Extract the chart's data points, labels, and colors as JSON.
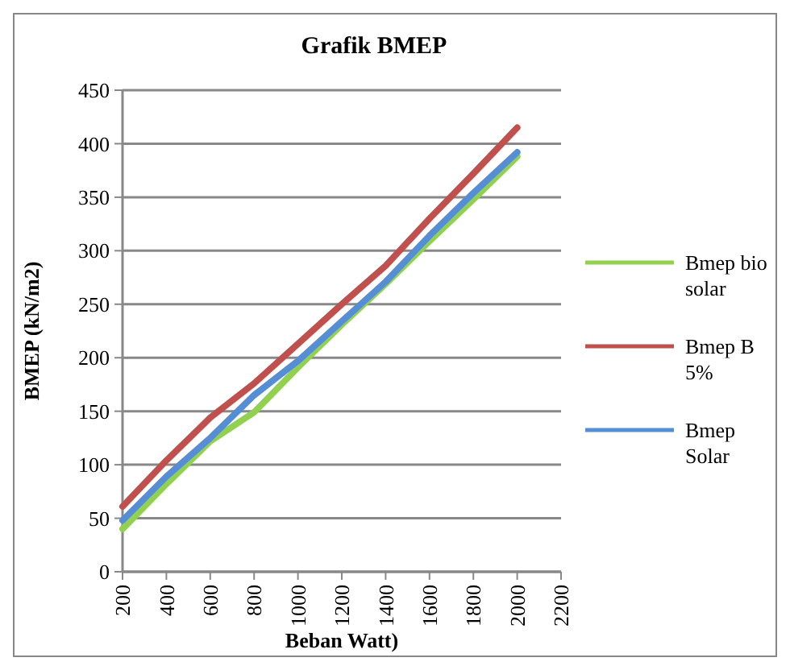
{
  "chart_data": {
    "type": "line",
    "title": "Grafik BMEP",
    "xlabel": "Beban Watt)",
    "ylabel": "BMEP (kN/m2)",
    "x": [
      200,
      400,
      600,
      800,
      1000,
      1200,
      1400,
      1600,
      1800,
      2000
    ],
    "xlim": [
      200,
      2200
    ],
    "xticks": [
      200,
      400,
      600,
      800,
      1000,
      1200,
      1400,
      1600,
      1800,
      2000,
      2200
    ],
    "ylim": [
      0,
      450
    ],
    "yticks": [
      0,
      50,
      100,
      150,
      200,
      250,
      300,
      350,
      400,
      450
    ],
    "grid": "y",
    "legend": "right",
    "marker": "none",
    "line_style": "solid",
    "series": [
      {
        "name": "Bmep bio solar",
        "color": "#92d050",
        "values": [
          40,
          82,
          122,
          149,
          191,
          231,
          269,
          309,
          348,
          388
        ]
      },
      {
        "name": "Bmep B 5%",
        "color": "#c0504d",
        "values": [
          61,
          104,
          144,
          176,
          213,
          250,
          286,
          330,
          372,
          415
        ]
      },
      {
        "name": "Bmep Solar",
        "color": "#558ed5",
        "values": [
          48,
          89,
          125,
          165,
          197,
          234,
          271,
          314,
          354,
          392
        ]
      }
    ]
  }
}
